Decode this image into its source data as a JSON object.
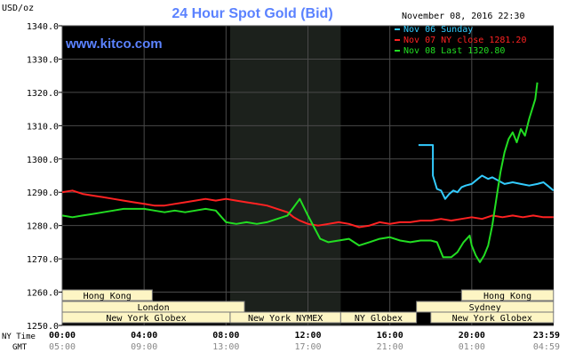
{
  "chart_data": {
    "type": "line",
    "title": "24 Hour Spot Gold (Bid)",
    "brand": "www.kitco.com",
    "datetime": "November 08, 2016 22:30",
    "yunit": "USD/oz",
    "ylim": [
      1250,
      1340
    ],
    "yticks": [
      "1340.0",
      "1330.0",
      "1320.0",
      "1310.0",
      "1300.0",
      "1290.0",
      "1280.0",
      "1270.0",
      "1260.0",
      "1250.0"
    ],
    "xlim": [
      0,
      24
    ],
    "xticks_ny": [
      "00:00",
      "04:00",
      "08:00",
      "12:00",
      "16:00",
      "20:00",
      "23:59"
    ],
    "xticks_gmt": [
      "05:00",
      "09:00",
      "13:00",
      "17:00",
      "21:00",
      "01:00",
      "04:59"
    ],
    "xaxis_label_ny": "NY Time",
    "xaxis_label_gmt": "GMT",
    "grid": true,
    "legend_position": "top-right",
    "nymex_shade_hours": [
      8.2,
      13.6
    ],
    "colors": {
      "background": "#000000",
      "grid": "#4a4a4a",
      "shade": "#1c211c",
      "title": "#5b82ff",
      "brand": "#5b82ff",
      "session_fill": "#fdf5c4"
    },
    "series": [
      {
        "name": "Nov 06 Sunday",
        "color": "#33ccff",
        "x": [
          17.4,
          18.1,
          18.1,
          18.3,
          18.5,
          18.7,
          18.9,
          19.1,
          19.3,
          19.5,
          19.7,
          20.0,
          20.3,
          20.5,
          20.8,
          21.0,
          21.3,
          21.6,
          22.0,
          22.4,
          22.8,
          23.2,
          23.5,
          23.7,
          23.99
        ],
        "y": [
          1304.2,
          1304.2,
          1295.0,
          1291.0,
          1290.5,
          1288.0,
          1289.5,
          1290.5,
          1290.0,
          1291.5,
          1292.0,
          1292.5,
          1294.0,
          1295.0,
          1294.0,
          1294.5,
          1293.5,
          1292.5,
          1293.0,
          1292.5,
          1292.0,
          1292.5,
          1293.0,
          1292.0,
          1290.5
        ]
      },
      {
        "name": "Nov 07 NY close 1281.20",
        "color": "#ff2222",
        "x": [
          0,
          0.5,
          1.0,
          1.5,
          2.0,
          2.5,
          3.0,
          3.5,
          4.0,
          4.5,
          5.0,
          5.5,
          6.0,
          6.5,
          7.0,
          7.5,
          8.0,
          8.5,
          9.0,
          9.5,
          10.0,
          10.5,
          11.0,
          11.3,
          11.6,
          12.0,
          12.5,
          13.0,
          13.5,
          14.0,
          14.5,
          15.0,
          15.5,
          16.0,
          16.5,
          17.0,
          17.5,
          18.0,
          18.5,
          19.0,
          19.5,
          20.0,
          20.5,
          21.0,
          21.5,
          22.0,
          22.5,
          23.0,
          23.5,
          23.99
        ],
        "y": [
          1290.0,
          1290.5,
          1289.5,
          1289.0,
          1288.5,
          1288.0,
          1287.5,
          1287.0,
          1286.5,
          1286.0,
          1286.0,
          1286.5,
          1287.0,
          1287.5,
          1288.0,
          1287.5,
          1288.0,
          1287.5,
          1287.0,
          1286.5,
          1286.0,
          1285.0,
          1284.0,
          1282.5,
          1281.5,
          1280.5,
          1280.0,
          1280.5,
          1281.0,
          1280.5,
          1279.5,
          1280.0,
          1281.0,
          1280.5,
          1281.0,
          1281.0,
          1281.5,
          1281.5,
          1282.0,
          1281.5,
          1282.0,
          1282.5,
          1282.0,
          1283.0,
          1282.5,
          1283.0,
          1282.5,
          1283.0,
          1282.5,
          1282.5
        ]
      },
      {
        "name": "Nov 08 Last 1320.80",
        "color": "#22dd22",
        "x": [
          0,
          0.5,
          1.0,
          1.5,
          2.0,
          2.5,
          3.0,
          3.5,
          4.0,
          4.5,
          5.0,
          5.5,
          6.0,
          6.5,
          7.0,
          7.5,
          8.0,
          8.5,
          9.0,
          9.5,
          10.0,
          10.5,
          11.0,
          11.3,
          11.6,
          12.0,
          12.3,
          12.6,
          13.0,
          13.5,
          14.0,
          14.5,
          15.0,
          15.5,
          16.0,
          16.5,
          17.0,
          17.5,
          18.0,
          18.3,
          18.6,
          19.0,
          19.3,
          19.6,
          19.9,
          20.0,
          20.2,
          20.4,
          20.6,
          20.8,
          21.0,
          21.2,
          21.4,
          21.6,
          21.8,
          22.0,
          22.2,
          22.4,
          22.6,
          22.8,
          23.0,
          23.1,
          23.2
        ],
        "y": [
          1283.0,
          1282.5,
          1283.0,
          1283.5,
          1284.0,
          1284.5,
          1285.0,
          1285.0,
          1285.0,
          1284.5,
          1284.0,
          1284.5,
          1284.0,
          1284.5,
          1285.0,
          1284.5,
          1281.0,
          1280.5,
          1281.0,
          1280.5,
          1281.0,
          1282.0,
          1283.0,
          1285.5,
          1288.0,
          1283.0,
          1279.5,
          1276.0,
          1275.0,
          1275.5,
          1276.0,
          1274.0,
          1275.0,
          1276.0,
          1276.5,
          1275.5,
          1275.0,
          1275.5,
          1275.5,
          1275.0,
          1270.5,
          1270.5,
          1272.0,
          1275.0,
          1277.0,
          1274.0,
          1271.0,
          1269.0,
          1271.0,
          1274.0,
          1280.0,
          1288.0,
          1296.0,
          1302.0,
          1306.0,
          1308.0,
          1305.0,
          1309.0,
          1307.0,
          1312.0,
          1316.0,
          1318.0,
          1323.0
        ]
      }
    ],
    "sessions": [
      {
        "label": "Hong Kong",
        "row": 0,
        "start": 0,
        "end": 4.4
      },
      {
        "label": "London",
        "row": 1,
        "start": 0,
        "end": 8.9
      },
      {
        "label": "New York Globex",
        "row": 2,
        "start": 0,
        "end": 8.2
      },
      {
        "label": "New York NYMEX",
        "row": 2,
        "start": 8.2,
        "end": 13.6
      },
      {
        "label": "NY Globex",
        "row": 2,
        "start": 13.6,
        "end": 17.3
      },
      {
        "label": "Hong Kong",
        "row": 0,
        "start": 19.5,
        "end": 23.99
      },
      {
        "label": "Sydney",
        "row": 1,
        "start": 17.3,
        "end": 23.99
      },
      {
        "label": "New York Globex",
        "row": 2,
        "start": 18.0,
        "end": 23.99
      }
    ]
  }
}
